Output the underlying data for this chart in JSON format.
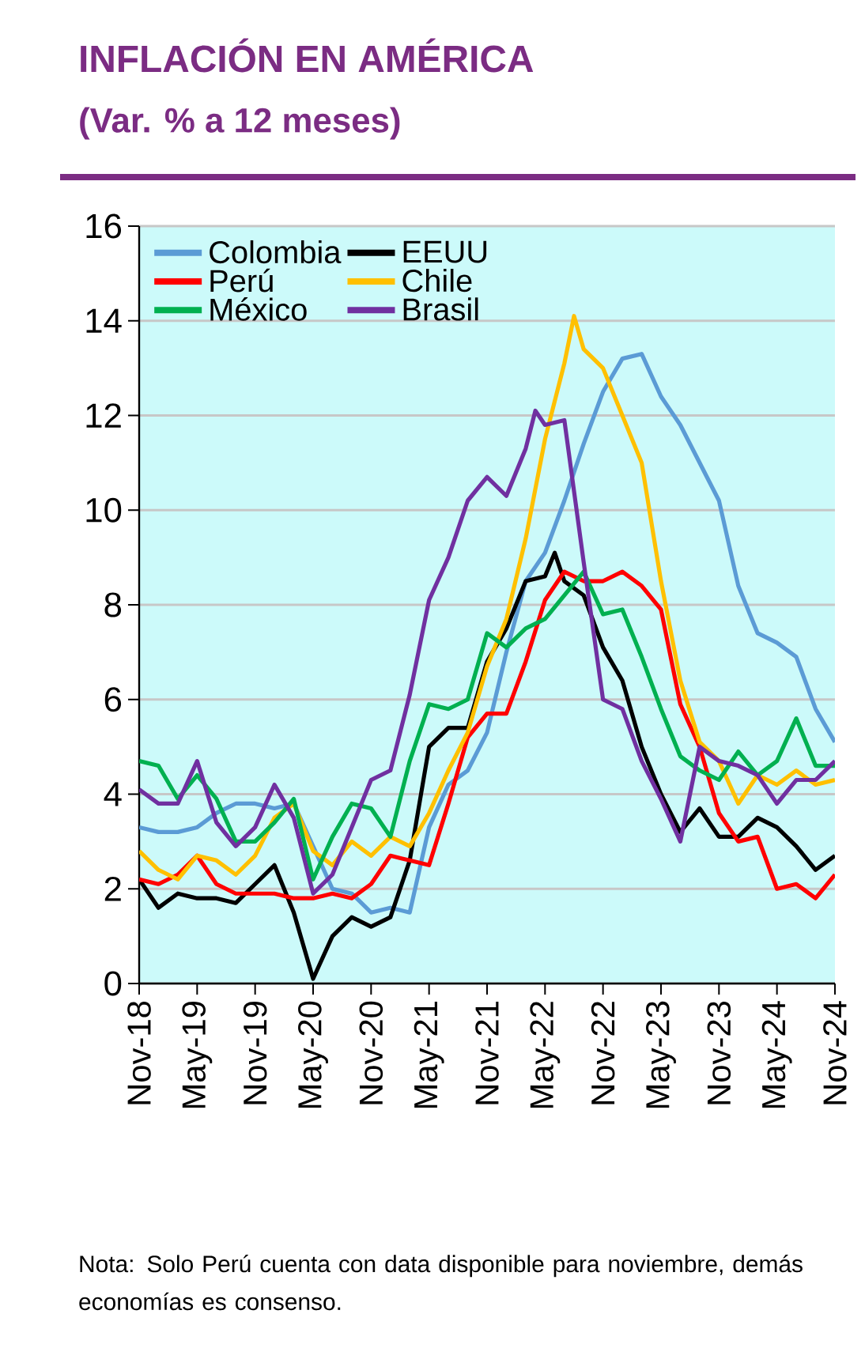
{
  "chart_data": {
    "type": "line",
    "title": "INFLACIÓN EN AMÉRICA",
    "subtitle": "(Var. % a 12 meses)",
    "x": [
      "2018-11",
      "2019-01",
      "2019-03",
      "2019-05",
      "2019-07",
      "2019-09",
      "2019-11",
      "2020-01",
      "2020-03",
      "2020-05",
      "2020-07",
      "2020-09",
      "2020-11",
      "2021-01",
      "2021-03",
      "2021-05",
      "2021-07",
      "2021-09",
      "2021-11",
      "2022-01",
      "2022-03",
      "2022-05",
      "2022-07",
      "2022-09",
      "2022-11",
      "2023-01",
      "2023-03",
      "2023-05",
      "2023-07",
      "2023-09",
      "2023-11",
      "2024-01",
      "2024-03",
      "2024-05",
      "2024-07",
      "2024-09",
      "2024-11"
    ],
    "series": [
      {
        "name": "Colombia",
        "color": "#5b9bd5",
        "values": [
          3.3,
          3.2,
          3.2,
          3.3,
          3.6,
          3.8,
          3.8,
          3.7,
          3.8,
          2.9,
          2.0,
          1.9,
          1.5,
          1.6,
          1.5,
          3.3,
          4.2,
          4.5,
          5.3,
          7.0,
          8.5,
          9.1,
          10.2,
          11.4,
          12.5,
          13.2,
          13.3,
          12.4,
          11.8,
          11.0,
          10.2,
          8.4,
          7.4,
          7.2,
          6.9,
          5.8,
          5.1
        ]
      },
      {
        "name": "EEUU",
        "color": "#000000",
        "x": [
          "2018-11",
          "2019-01",
          "2019-03",
          "2019-05",
          "2019-07",
          "2019-09",
          "2019-11",
          "2020-01",
          "2020-03",
          "2020-05",
          "2020-07",
          "2020-09",
          "2020-11",
          "2021-01",
          "2021-03",
          "2021-05",
          "2021-07",
          "2021-09",
          "2021-11",
          "2022-01",
          "2022-03",
          "2022-05",
          "2022-06",
          "2022-07",
          "2022-09",
          "2022-11",
          "2023-01",
          "2023-03",
          "2023-05",
          "2023-07",
          "2023-09",
          "2023-11",
          "2024-01",
          "2024-03",
          "2024-05",
          "2024-07",
          "2024-09",
          "2024-11"
        ],
        "values": [
          2.2,
          1.6,
          1.9,
          1.8,
          1.8,
          1.7,
          2.1,
          2.5,
          1.5,
          0.1,
          1.0,
          1.4,
          1.2,
          1.4,
          2.6,
          5.0,
          5.4,
          5.4,
          6.8,
          7.5,
          8.5,
          8.6,
          9.1,
          8.5,
          8.2,
          7.1,
          6.4,
          5.0,
          4.0,
          3.2,
          3.7,
          3.1,
          3.1,
          3.5,
          3.3,
          2.9,
          2.4,
          2.7
        ]
      },
      {
        "name": "Perú",
        "color": "#ff0000",
        "values": [
          2.2,
          2.1,
          2.3,
          2.7,
          2.1,
          1.9,
          1.9,
          1.9,
          1.8,
          1.8,
          1.9,
          1.8,
          2.1,
          2.7,
          2.6,
          2.5,
          3.8,
          5.2,
          5.7,
          5.7,
          6.8,
          8.1,
          8.7,
          8.5,
          8.5,
          8.7,
          8.4,
          7.9,
          5.9,
          5.0,
          3.6,
          3.0,
          3.1,
          2.0,
          2.1,
          1.8,
          2.3
        ]
      },
      {
        "name": "Chile",
        "color": "#ffc000",
        "x": [
          "2018-11",
          "2019-01",
          "2019-03",
          "2019-05",
          "2019-07",
          "2019-09",
          "2019-11",
          "2020-01",
          "2020-03",
          "2020-05",
          "2020-07",
          "2020-09",
          "2020-11",
          "2021-01",
          "2021-03",
          "2021-05",
          "2021-07",
          "2021-09",
          "2021-11",
          "2022-01",
          "2022-03",
          "2022-05",
          "2022-07",
          "2022-08",
          "2022-09",
          "2022-11",
          "2023-01",
          "2023-03",
          "2023-05",
          "2023-07",
          "2023-09",
          "2023-11",
          "2024-01",
          "2024-03",
          "2024-05",
          "2024-07",
          "2024-09",
          "2024-11"
        ],
        "values": [
          2.8,
          2.4,
          2.2,
          2.7,
          2.6,
          2.3,
          2.7,
          3.5,
          3.8,
          2.8,
          2.5,
          3.0,
          2.7,
          3.1,
          2.9,
          3.6,
          4.5,
          5.3,
          6.7,
          7.7,
          9.4,
          11.5,
          13.1,
          14.1,
          13.4,
          13.0,
          12.0,
          11.0,
          8.5,
          6.4,
          5.1,
          4.7,
          3.8,
          4.4,
          4.2,
          4.5,
          4.2,
          4.3
        ]
      },
      {
        "name": "México",
        "color": "#00b050",
        "values": [
          4.7,
          4.6,
          3.9,
          4.4,
          3.9,
          3.0,
          3.0,
          3.4,
          3.9,
          2.2,
          3.1,
          3.8,
          3.7,
          3.1,
          4.7,
          5.9,
          5.8,
          6.0,
          7.4,
          7.1,
          7.5,
          7.7,
          8.2,
          8.7,
          7.8,
          7.9,
          6.9,
          5.8,
          4.8,
          4.5,
          4.3,
          4.9,
          4.4,
          4.7,
          5.6,
          4.6,
          4.6
        ]
      },
      {
        "name": "Brasil",
        "color": "#7030a0",
        "x": [
          "2018-11",
          "2019-01",
          "2019-03",
          "2019-05",
          "2019-07",
          "2019-09",
          "2019-11",
          "2020-01",
          "2020-03",
          "2020-05",
          "2020-07",
          "2020-09",
          "2020-11",
          "2021-01",
          "2021-03",
          "2021-05",
          "2021-07",
          "2021-09",
          "2021-11",
          "2022-01",
          "2022-03",
          "2022-04",
          "2022-05",
          "2022-07",
          "2022-09",
          "2022-11",
          "2023-01",
          "2023-03",
          "2023-05",
          "2023-07",
          "2023-09",
          "2023-11",
          "2024-01",
          "2024-03",
          "2024-05",
          "2024-07",
          "2024-09",
          "2024-11"
        ],
        "values": [
          4.1,
          3.8,
          3.8,
          4.7,
          3.4,
          2.9,
          3.3,
          4.2,
          3.5,
          1.9,
          2.3,
          3.3,
          4.3,
          4.5,
          6.1,
          8.1,
          9.0,
          10.2,
          10.7,
          10.3,
          11.3,
          12.1,
          11.8,
          11.9,
          8.9,
          6.0,
          5.8,
          4.7,
          3.9,
          3.0,
          5.0,
          4.7,
          4.6,
          4.4,
          3.8,
          4.3,
          4.3,
          4.7
        ]
      }
    ],
    "xlim": [
      "2018-11",
      "2024-11"
    ],
    "xticks": [
      {
        "value": "2018-11",
        "label": "Nov-18"
      },
      {
        "value": "2019-05",
        "label": "May-19"
      },
      {
        "value": "2019-11",
        "label": "Nov-19"
      },
      {
        "value": "2020-05",
        "label": "May-20"
      },
      {
        "value": "2020-11",
        "label": "Nov-20"
      },
      {
        "value": "2021-05",
        "label": "May-21"
      },
      {
        "value": "2021-11",
        "label": "Nov-21"
      },
      {
        "value": "2022-05",
        "label": "May-22"
      },
      {
        "value": "2022-11",
        "label": "Nov-22"
      },
      {
        "value": "2023-05",
        "label": "May-23"
      },
      {
        "value": "2023-11",
        "label": "Nov-23"
      },
      {
        "value": "2024-05",
        "label": "May-24"
      },
      {
        "value": "2024-11",
        "label": "Nov-24"
      }
    ],
    "ylim": [
      0,
      16
    ],
    "yticks": [
      0,
      2,
      4,
      6,
      8,
      10,
      12,
      14,
      16
    ],
    "grid": "y",
    "legend": "top left",
    "marker": "none",
    "line_style": "solid",
    "annotations": [
      "Nota: Solo Perú cuenta con data disponible para noviembre, demás economías es consenso."
    ]
  }
}
